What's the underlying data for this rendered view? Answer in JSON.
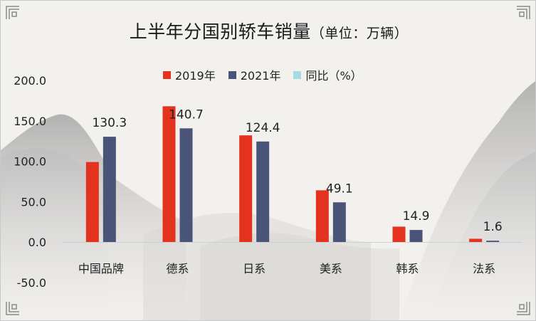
{
  "title": {
    "main": "上半年分国别轿车销量",
    "unit": "（单位：万辆）"
  },
  "legend": [
    {
      "label": "2019年",
      "color": "#e3321e"
    },
    {
      "label": "2021年",
      "color": "#4a5479"
    },
    {
      "label": "同比（%）",
      "color": "#a7dbe4"
    }
  ],
  "chart_data": {
    "type": "bar",
    "categories": [
      "中国品牌",
      "德系",
      "日系",
      "美系",
      "韩系",
      "法系"
    ],
    "series": [
      {
        "name": "2019年",
        "color": "#e3321e",
        "values": [
          99,
          168,
          132,
          64,
          19,
          4
        ]
      },
      {
        "name": "2021年",
        "color": "#4a5479",
        "values": [
          130.3,
          140.7,
          124.4,
          49.1,
          14.9,
          1.6
        ]
      }
    ],
    "data_labels": [
      "130.3",
      "140.7",
      "124.4",
      "49.1",
      "14.9",
      "1.6"
    ],
    "yticks": [
      "-50.0",
      "0.0",
      "50.0",
      "100.0",
      "150.0",
      "200.0"
    ],
    "ylim": [
      -50,
      200
    ],
    "grid": false,
    "legend_position": "top"
  }
}
